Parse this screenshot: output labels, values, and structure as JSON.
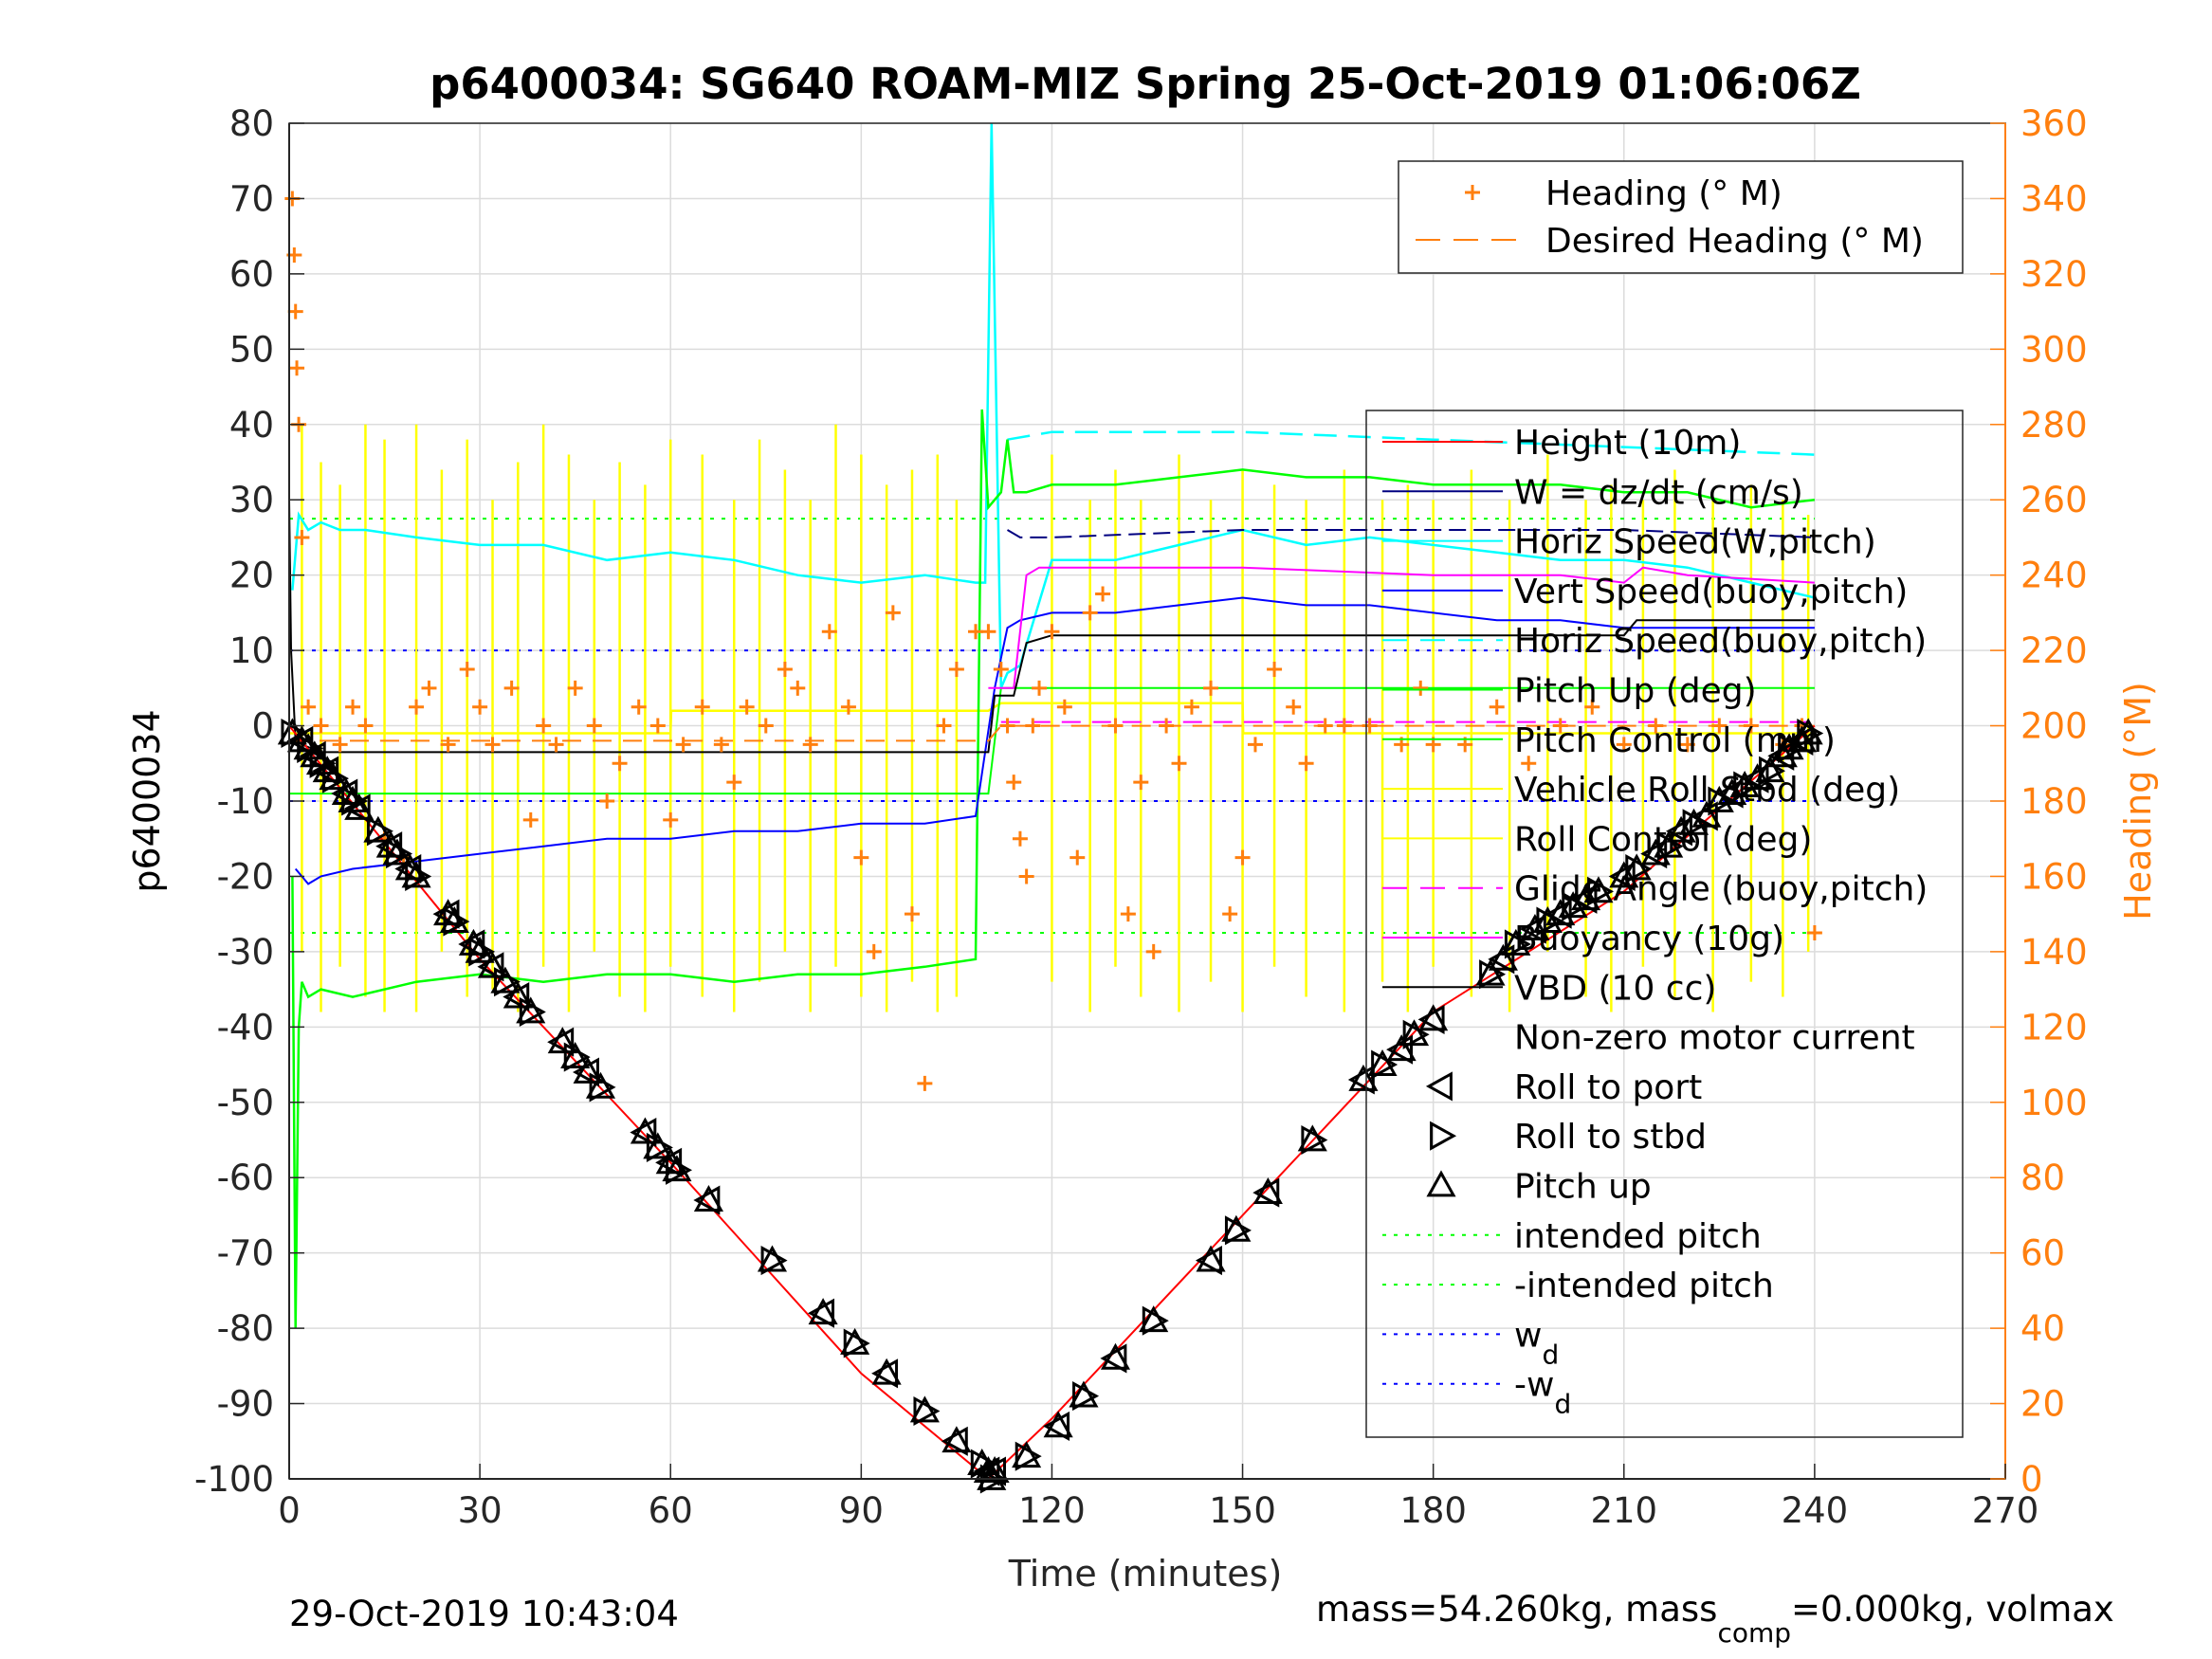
{
  "chart_data": {
    "type": "line",
    "title": "p6400034: SG640 ROAM-MIZ Spring 25-Oct-2019 01:06:06Z",
    "xlabel": "Time (minutes)",
    "ylabel": "p6400034",
    "y2label": "Heading (°M)",
    "xlim": [
      0,
      270
    ],
    "ylim": [
      -100,
      80
    ],
    "y2lim": [
      0,
      360
    ],
    "x_ticks": [
      "0",
      "30",
      "60",
      "90",
      "120",
      "150",
      "180",
      "210",
      "240",
      "270"
    ],
    "y_ticks": [
      "80",
      "70",
      "60",
      "50",
      "40",
      "30",
      "20",
      "10",
      "0",
      "-10",
      "-20",
      "-30",
      "-40",
      "-50",
      "-60",
      "-70",
      "-80",
      "-90",
      "-100"
    ],
    "y2_ticks": [
      "360",
      "340",
      "320",
      "300",
      "280",
      "260",
      "240",
      "220",
      "200",
      "180",
      "160",
      "140",
      "120",
      "100",
      "80",
      "60",
      "40",
      "20",
      "0"
    ],
    "grid": true,
    "footer_left": "29-Oct-2019 10:43:04",
    "footer_right": {
      "prefix": "mass=54.260kg, mass",
      "subscript": "comp",
      "suffix": "=0.000kg, volmax"
    },
    "heading_legend": [
      {
        "label": "Heading (° M)",
        "color": "#ff7f0e",
        "marker": "plus"
      },
      {
        "label": "Desired Heading (° M)",
        "color": "#ff7f0e",
        "style": "dashed"
      }
    ],
    "legend": [
      {
        "label": "Height (10m)",
        "color": "#ff0000",
        "style": "solid"
      },
      {
        "label": "W = dz/dt (cm/s)",
        "color": "#000080",
        "style": "solid"
      },
      {
        "label": "Horiz Speed(W,pitch)",
        "color": "#00ffff",
        "style": "solid"
      },
      {
        "label": "Vert Speed(buoy,pitch)",
        "color": "#0000ff",
        "style": "solid"
      },
      {
        "label": "Horiz Speed(buoy,pitch)",
        "color": "#00ffff",
        "style": "dashed"
      },
      {
        "label": "Pitch Up (deg)",
        "color": "#00ff00",
        "style": "solid"
      },
      {
        "label": "Pitch Control (mm)",
        "color": "#00ff00",
        "style": "solid"
      },
      {
        "label": "Vehicle Roll Stbd (deg)",
        "color": "#ffff00",
        "style": "solid"
      },
      {
        "label": "Roll Control (deg)",
        "color": "#ffff00",
        "style": "solid"
      },
      {
        "label": "Glide Angle (buoy,pitch)",
        "color": "#ff00ff",
        "style": "dashed"
      },
      {
        "label": "Buoyancy (10g)",
        "color": "#ff00ff",
        "style": "solid"
      },
      {
        "label": "VBD (10 cc)",
        "color": "#000000",
        "style": "solid"
      },
      {
        "label": "Non-zero motor current",
        "color": "#000000",
        "style": "none"
      },
      {
        "label": "Roll to port",
        "color": "#000000",
        "marker": "triangle-left"
      },
      {
        "label": "Roll to stbd",
        "color": "#000000",
        "marker": "triangle-right"
      },
      {
        "label": "Pitch up",
        "color": "#000000",
        "marker": "triangle-up"
      },
      {
        "label": "intended pitch",
        "color": "#00ff00",
        "style": "dotted"
      },
      {
        "label": "-intended pitch",
        "color": "#00ff00",
        "style": "dotted"
      },
      {
        "label": "w",
        "sub": "d",
        "color": "#0000ff",
        "style": "dotted"
      },
      {
        "label": "-w",
        "sub": "d",
        "color": "#0000ff",
        "style": "dotted"
      }
    ],
    "series": {
      "height": {
        "name": "Height (10m)",
        "color": "#ff0000",
        "x": [
          0,
          30,
          60,
          90,
          110,
          120,
          150,
          180,
          210,
          240
        ],
        "y": [
          0,
          -31,
          -58,
          -86,
          -100,
          -92,
          -65,
          -38,
          -22,
          0
        ]
      },
      "intended_pitch": {
        "name": "intended pitch",
        "color": "#00ff00",
        "x": [
          0,
          240
        ],
        "y": [
          27.5,
          27.5
        ]
      },
      "neg_intended_pitch": {
        "name": "-intended pitch",
        "color": "#00ff00",
        "x": [
          0,
          240
        ],
        "y": [
          -27.5,
          -27.5
        ]
      },
      "w_d": {
        "name": "w",
        "color": "#0000ff",
        "x": [
          0,
          240
        ],
        "y": [
          10,
          10
        ]
      },
      "neg_w_d": {
        "name": "-w",
        "color": "#0000ff",
        "x": [
          0,
          240
        ],
        "y": [
          -10,
          -10
        ]
      },
      "horiz_speed_w_pitch": {
        "name": "Horiz Speed(W,pitch)",
        "color": "#00ffff",
        "x": [
          0.5,
          1.5,
          3,
          5,
          8,
          12,
          20,
          30,
          40,
          50,
          60,
          70,
          80,
          90,
          100,
          108,
          109.5,
          110.5,
          112,
          113,
          115,
          120,
          130,
          140,
          150,
          160,
          170,
          180,
          190,
          200,
          210,
          220,
          230,
          240
        ],
        "y": [
          18,
          28,
          26,
          27,
          26,
          26,
          25,
          24,
          24,
          22,
          23,
          22,
          20,
          19,
          20,
          19,
          19,
          80,
          5,
          7,
          8,
          22,
          22,
          24,
          26,
          24,
          25,
          24,
          23,
          22,
          22,
          21,
          19,
          17
        ]
      },
      "horiz_speed_buoy_pitch": {
        "name": "Horiz Speed(buoy,pitch)",
        "color": "#00ffff",
        "x": [
          113,
          120,
          150,
          180,
          210,
          240
        ],
        "y": [
          38,
          39,
          39,
          38,
          37,
          36
        ]
      },
      "pitch_up": {
        "name": "Pitch Up (deg)",
        "color": "#00ff00",
        "x": [
          0.5,
          1,
          1.5,
          2,
          3,
          5,
          10,
          20,
          30,
          40,
          50,
          60,
          70,
          80,
          90,
          100,
          108,
          109,
          110,
          111,
          112,
          113,
          114,
          116,
          120,
          130,
          140,
          150,
          160,
          170,
          180,
          190,
          200,
          210,
          220,
          230,
          240
        ],
        "y": [
          -20,
          -80,
          -40,
          -34,
          -36,
          -35,
          -36,
          -34,
          -33,
          -34,
          -33,
          -33,
          -34,
          -33,
          -33,
          -32,
          -31,
          42,
          29,
          30,
          31,
          38,
          31,
          31,
          32,
          32,
          33,
          34,
          33,
          33,
          32,
          32,
          32,
          31,
          31,
          29,
          30
        ]
      },
      "vert_speed_buoy_pitch": {
        "name": "Vert Speed(buoy,pitch)",
        "color": "#0000ff",
        "x": [
          1,
          3,
          5,
          10,
          20,
          30,
          40,
          50,
          60,
          70,
          80,
          90,
          100,
          108,
          111,
          113,
          115,
          120,
          130,
          140,
          150,
          160,
          170,
          180,
          190,
          200,
          210,
          220,
          230,
          240
        ],
        "y": [
          -19,
          -21,
          -20,
          -19,
          -18,
          -17,
          -16,
          -15,
          -15,
          -14,
          -14,
          -13,
          -13,
          -12,
          5,
          13,
          14,
          15,
          15,
          16,
          17,
          16,
          16,
          15,
          14,
          14,
          13,
          13,
          13,
          13
        ]
      },
      "w_dzdt": {
        "name": "W = dz/dt (cm/s)",
        "color": "#000080",
        "x": [
          113,
          115,
          120,
          150,
          180,
          210,
          240
        ],
        "y": [
          26,
          25,
          25,
          26,
          26,
          26,
          25
        ]
      },
      "buoyancy": {
        "name": "Buoyancy (10g)",
        "color": "#ff00ff",
        "x": [
          110,
          114,
          116,
          118,
          125,
          150,
          180,
          200,
          210,
          213,
          220,
          240
        ],
        "y": [
          5,
          5,
          20,
          21,
          21,
          21,
          20,
          20,
          19,
          21,
          20,
          19
        ]
      },
      "glide_angle": {
        "name": "Glide Angle (buoy,pitch)",
        "color": "#ff00ff",
        "x": [
          112,
          240
        ],
        "y": [
          0.5,
          0.5
        ]
      },
      "vbd": {
        "name": "VBD (10 cc)",
        "color": "#000000",
        "x": [
          0,
          0.3,
          1,
          2,
          5,
          10,
          110,
          111,
          114,
          116,
          120,
          200,
          210,
          212,
          240
        ],
        "y": [
          30,
          10,
          -2,
          -2.5,
          -3.5,
          -3.5,
          -3.5,
          4,
          4,
          11,
          12,
          12,
          12,
          14,
          14
        ]
      },
      "pitch_control": {
        "name": "Pitch Control (mm)",
        "color": "#00ff00",
        "x": [
          0,
          110,
          112,
          240
        ],
        "y": [
          -9,
          -9,
          5,
          5
        ]
      },
      "roll_control": {
        "name": "Roll Control (deg)",
        "color": "#ffff00",
        "x": [
          0,
          60,
          60.1,
          110,
          112,
          150,
          150.1,
          240
        ],
        "y": [
          -1,
          -1,
          2,
          2,
          3,
          3,
          -1,
          -1
        ]
      },
      "vehicle_roll_spikes": {
        "name": "Vehicle Roll Stbd (deg)",
        "color": "#ffff00",
        "x": [
          2,
          5,
          8,
          12,
          15,
          20,
          24,
          28,
          32,
          36,
          40,
          44,
          48,
          52,
          56,
          60,
          65,
          70,
          74,
          78,
          82,
          86,
          90,
          94,
          98,
          102,
          105,
          120,
          126,
          130,
          134,
          140,
          145,
          150,
          155,
          160,
          166,
          172,
          176,
          180,
          186,
          192,
          198,
          204,
          208,
          213,
          218,
          224,
          230,
          235,
          239
        ],
        "y1": [
          -30,
          -38,
          -32,
          -36,
          -38,
          -38,
          -30,
          -36,
          -35,
          -38,
          -32,
          -38,
          -30,
          -36,
          -38,
          -32,
          -36,
          -38,
          -34,
          -30,
          -38,
          -32,
          -36,
          -38,
          -34,
          -38,
          -36,
          -34,
          -38,
          -32,
          -36,
          -38,
          -34,
          -38,
          -32,
          -36,
          -38,
          -34,
          -38,
          -32,
          -36,
          -38,
          -30,
          -36,
          -38,
          -32,
          -36,
          -38,
          -34,
          -36,
          -30
        ],
        "y2": [
          40,
          35,
          32,
          40,
          38,
          40,
          34,
          38,
          30,
          35,
          40,
          36,
          30,
          35,
          32,
          38,
          36,
          30,
          38,
          34,
          30,
          40,
          36,
          32,
          34,
          36,
          30,
          36,
          30,
          34,
          30,
          36,
          30,
          34,
          32,
          30,
          34,
          30,
          32,
          30,
          34,
          30,
          36,
          30,
          32,
          30,
          34,
          30,
          32,
          30,
          28
        ]
      },
      "heading": {
        "name": "Heading (° M)",
        "color": "#ff7f0e",
        "x": [
          0.5,
          0.8,
          1,
          1.2,
          1.5,
          2,
          3,
          5,
          8,
          10,
          12,
          15,
          18,
          20,
          22,
          25,
          28,
          30,
          32,
          35,
          38,
          40,
          42,
          45,
          48,
          50,
          52,
          55,
          58,
          60,
          62,
          65,
          68,
          70,
          72,
          75,
          78,
          80,
          82,
          85,
          88,
          90,
          92,
          95,
          98,
          100,
          103,
          105,
          108,
          110,
          112,
          113,
          114,
          115,
          116,
          117,
          118,
          120,
          122,
          124,
          126,
          128,
          130,
          132,
          134,
          136,
          138,
          140,
          142,
          145,
          148,
          150,
          152,
          155,
          158,
          160,
          163,
          166,
          170,
          175,
          178,
          180,
          185,
          190,
          195,
          200,
          205,
          210,
          215,
          220,
          225,
          230,
          235,
          238,
          240
        ],
        "y": [
          340,
          325,
          310,
          295,
          280,
          250,
          205,
          200,
          195,
          205,
          200,
          170,
          165,
          205,
          210,
          195,
          215,
          205,
          195,
          210,
          175,
          200,
          195,
          210,
          200,
          180,
          190,
          205,
          200,
          175,
          195,
          205,
          195,
          185,
          205,
          200,
          215,
          210,
          195,
          225,
          205,
          165,
          140,
          230,
          150,
          105,
          200,
          215,
          225,
          225,
          215,
          200,
          185,
          170,
          160,
          200,
          210,
          225,
          205,
          165,
          230,
          235,
          200,
          150,
          185,
          140,
          200,
          190,
          205,
          210,
          150,
          165,
          195,
          215,
          205,
          190,
          200,
          200,
          200,
          195,
          210,
          195,
          195,
          205,
          190,
          200,
          205,
          195,
          200,
          195,
          200,
          200,
          195,
          200,
          145
        ]
      },
      "desired_heading": {
        "name": "Desired Heading (° M)",
        "color": "#ff7f0e",
        "x": [
          0,
          110,
          112,
          240
        ],
        "y": [
          196,
          196,
          200,
          200
        ]
      },
      "pitch_up_markers": {
        "name": "Pitch up",
        "x": [
          0.5,
          2,
          3,
          4,
          5,
          6,
          7,
          9,
          10,
          11,
          14,
          16,
          17,
          19,
          20,
          25,
          26,
          29,
          30,
          32,
          34,
          36,
          38,
          43,
          45,
          47,
          49,
          56,
          58,
          60,
          61,
          66,
          76,
          84,
          89,
          94,
          100,
          105,
          109,
          110,
          110.5,
          111,
          116,
          121,
          125,
          130,
          136,
          145,
          149,
          154,
          161,
          169,
          172,
          175,
          177,
          180,
          189,
          191,
          193,
          196,
          198,
          200,
          202,
          204,
          206,
          210,
          212,
          215,
          217,
          219,
          221,
          223,
          225,
          227,
          229,
          231,
          233,
          235,
          236,
          238,
          239
        ],
        "y": [
          -1,
          -2,
          -3,
          -4,
          -5,
          -6,
          -7,
          -9,
          -10,
          -11,
          -14,
          -16,
          -17,
          -19,
          -20,
          -25,
          -26,
          -29,
          -30,
          -32,
          -34,
          -36,
          -38,
          -42,
          -44,
          -46,
          -48,
          -54,
          -56,
          -58,
          -59,
          -63,
          -71,
          -78,
          -82,
          -86,
          -91,
          -95,
          -98,
          -99,
          -100,
          -99,
          -97,
          -93,
          -89,
          -84,
          -79,
          -71,
          -67,
          -62,
          -55,
          -47,
          -45,
          -43,
          -41,
          -39,
          -33,
          -31,
          -29,
          -27,
          -26,
          -25,
          -24,
          -23,
          -22,
          -20,
          -19,
          -17,
          -16,
          -14,
          -13,
          -12,
          -10,
          -9,
          -8,
          -7,
          -6,
          -4,
          -3,
          -2,
          -1
        ]
      }
    }
  }
}
